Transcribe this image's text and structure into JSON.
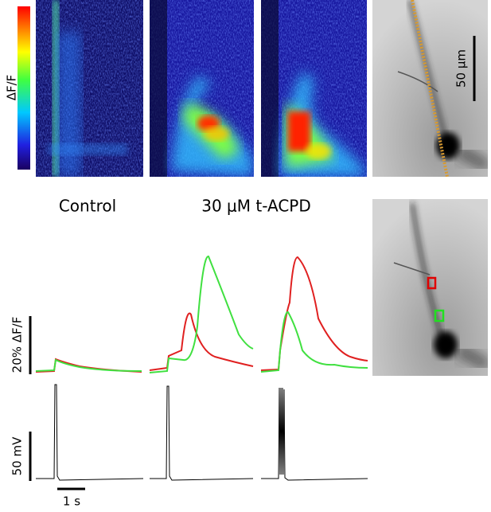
{
  "colorbar": {
    "label": "ΔF/F"
  },
  "image_scale": {
    "label": "50 μm"
  },
  "conditions": {
    "control": "Control",
    "drug": "30 μM t-ACPD"
  },
  "scale_bars": {
    "fluorescence": "20% ΔF/F",
    "voltage": "50 mV",
    "time": "1 s"
  }
}
